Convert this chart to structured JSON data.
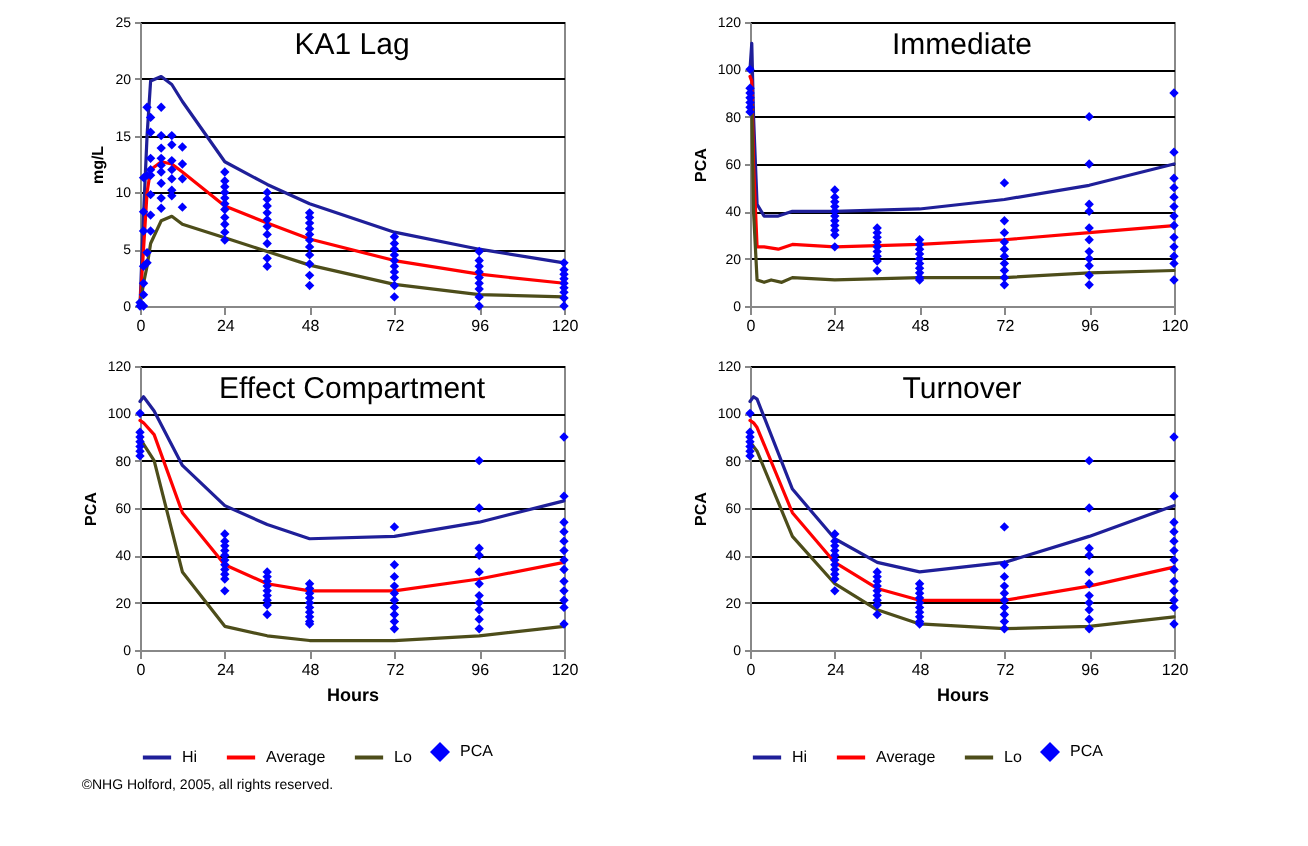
{
  "chart_data": [
    {
      "type": "line",
      "title": "KA1 Lag",
      "ylabel": "mg/L",
      "xlim": [
        0,
        120
      ],
      "ylim": [
        0,
        25
      ],
      "xticks": [
        0,
        24,
        48,
        72,
        96,
        120
      ],
      "yticks": [
        0,
        5,
        10,
        15,
        20,
        25
      ],
      "grid": "y",
      "legend": false,
      "series": [
        {
          "type": "line",
          "color": "#1f1f99",
          "x": [
            0,
            1,
            2,
            3,
            6,
            9,
            12,
            24,
            36,
            48,
            72,
            96,
            120
          ],
          "values": [
            0,
            8,
            15,
            19.8,
            20.2,
            19.5,
            18,
            12.7,
            10.7,
            9,
            6.5,
            5,
            3.8
          ]
        },
        {
          "type": "line",
          "color": "#ff0000",
          "x": [
            0,
            1,
            2,
            3,
            6,
            9,
            12,
            24,
            36,
            48,
            72,
            96,
            120
          ],
          "values": [
            0,
            5,
            10,
            12,
            12.7,
            12.5,
            11.8,
            8.8,
            7.3,
            5.9,
            4,
            2.8,
            2
          ]
        },
        {
          "type": "line",
          "color": "#4d4d1a",
          "x": [
            0,
            1,
            2,
            3,
            6,
            9,
            12,
            24,
            36,
            48,
            72,
            96,
            120
          ],
          "values": [
            0,
            2,
            3.5,
            5.5,
            7.5,
            7.9,
            7.2,
            6,
            4.8,
            3.6,
            1.9,
            1,
            0.8
          ]
        },
        {
          "type": "scatter",
          "color": "#0000ff",
          "marker": "diamond",
          "x": [
            0,
            0,
            1,
            1,
            1,
            1,
            1,
            1,
            1,
            2,
            2,
            2,
            2,
            3,
            3,
            3,
            3,
            3,
            3,
            3,
            3,
            6,
            6,
            6,
            6,
            6,
            6,
            6,
            6,
            6,
            9,
            9,
            9,
            9,
            9,
            9,
            9,
            12,
            12,
            12,
            12,
            24,
            24,
            24,
            24,
            24,
            24,
            24,
            24,
            24,
            24,
            24,
            36,
            36,
            36,
            36,
            36,
            36,
            36,
            36,
            36,
            36,
            48,
            48,
            48,
            48,
            48,
            48,
            48,
            48,
            48,
            48,
            48,
            72,
            72,
            72,
            72,
            72,
            72,
            72,
            72,
            72,
            72,
            96,
            96,
            96,
            96,
            96,
            96,
            96,
            96,
            96,
            120,
            120,
            120,
            120,
            120,
            120,
            120,
            120,
            120
          ],
          "values": [
            0,
            0.3,
            0,
            1,
            2,
            3.5,
            6.6,
            8.3,
            11.3,
            3.8,
            4.7,
            11.5,
            17.5,
            6.6,
            8,
            9.8,
            11.5,
            12,
            13,
            15.3,
            16.6,
            8.6,
            9.5,
            10.8,
            11.8,
            12.4,
            13,
            13.9,
            15,
            17.5,
            9.7,
            10.2,
            11.2,
            12,
            12.8,
            14.2,
            15,
            8.7,
            11.2,
            12.5,
            14,
            5.8,
            6.5,
            7.2,
            7.8,
            8.5,
            9,
            9.5,
            10,
            10.5,
            11,
            11.8,
            3.5,
            4.2,
            5.5,
            6.3,
            7,
            7.6,
            8.2,
            8.8,
            9.4,
            10,
            1.8,
            2.7,
            3.7,
            4.5,
            5.2,
            5.8,
            6.3,
            6.8,
            7.3,
            7.8,
            8.2,
            0.8,
            1.8,
            2.5,
            3,
            3.5,
            4,
            4.5,
            5,
            5.5,
            6.1,
            0,
            0.8,
            1.5,
            2,
            2.5,
            3,
            3.5,
            4,
            4.8,
            0,
            0.7,
            1.2,
            1.6,
            2,
            2.4,
            2.8,
            3.2,
            3.8
          ]
        }
      ]
    },
    {
      "type": "line",
      "title": "Immediate",
      "ylabel": "PCA",
      "xlim": [
        0,
        120
      ],
      "ylim": [
        0,
        120
      ],
      "xticks": [
        0,
        24,
        48,
        72,
        96,
        120
      ],
      "yticks": [
        0,
        20,
        40,
        60,
        80,
        100,
        120
      ],
      "grid": "y",
      "legend": false,
      "series": [
        {
          "type": "line",
          "color": "#1f1f99",
          "x": [
            0,
            0.5,
            1,
            2,
            4,
            8,
            12,
            24,
            48,
            72,
            96,
            120
          ],
          "values": [
            100,
            111,
            80,
            43,
            38,
            38,
            40,
            40,
            41,
            45,
            51,
            60
          ]
        },
        {
          "type": "line",
          "color": "#ff0000",
          "x": [
            0,
            0.5,
            1,
            2,
            4,
            8,
            12,
            24,
            48,
            72,
            96,
            120
          ],
          "values": [
            97,
            95,
            60,
            25,
            25,
            24,
            26,
            25,
            26,
            28,
            31,
            34
          ]
        },
        {
          "type": "line",
          "color": "#4d4d1a",
          "x": [
            0,
            0.5,
            1,
            2,
            4,
            6,
            9,
            12,
            24,
            48,
            72,
            96,
            120
          ],
          "values": [
            90,
            85,
            40,
            11,
            10,
            11,
            10,
            12,
            11,
            12,
            12,
            14,
            15
          ]
        },
        {
          "type": "scatter",
          "color": "#0000ff",
          "marker": "diamond",
          "x": [
            0,
            0,
            0,
            0,
            0,
            0,
            0,
            24,
            24,
            24,
            24,
            24,
            24,
            24,
            24,
            24,
            24,
            24,
            36,
            36,
            36,
            36,
            36,
            36,
            36,
            36,
            36,
            48,
            48,
            48,
            48,
            48,
            48,
            48,
            48,
            48,
            48,
            72,
            72,
            72,
            72,
            72,
            72,
            72,
            72,
            72,
            72,
            96,
            96,
            96,
            96,
            96,
            96,
            96,
            96,
            96,
            96,
            96,
            120,
            120,
            120,
            120,
            120,
            120,
            120,
            120,
            120,
            120,
            120,
            120,
            120
          ],
          "values": [
            100,
            92,
            90,
            88,
            86,
            84,
            82,
            49,
            46,
            44,
            42,
            40,
            38,
            36,
            34,
            32,
            30,
            25,
            33,
            31,
            29,
            27,
            25,
            23,
            21,
            19,
            15,
            28,
            26,
            24,
            22,
            20,
            18,
            16,
            14,
            12,
            11,
            52,
            36,
            31,
            27,
            24,
            21,
            18,
            15,
            12,
            9,
            80,
            60,
            43,
            40,
            33,
            28,
            23,
            20,
            17,
            13,
            9,
            90,
            65,
            54,
            50,
            46,
            42,
            38,
            34,
            29,
            25,
            21,
            18,
            11
          ]
        }
      ]
    },
    {
      "type": "line",
      "title": "Effect Compartment",
      "xlabel": "Hours",
      "ylabel": "PCA",
      "xlim": [
        0,
        120
      ],
      "ylim": [
        0,
        120
      ],
      "xticks": [
        0,
        24,
        48,
        72,
        96,
        120
      ],
      "yticks": [
        0,
        20,
        40,
        60,
        80,
        100,
        120
      ],
      "grid": "y",
      "legend": "bottom",
      "series": [
        {
          "name": "Hi",
          "type": "line",
          "color": "#1f1f99",
          "x": [
            0,
            1,
            4,
            12,
            24,
            36,
            48,
            72,
            96,
            120
          ],
          "values": [
            105,
            107,
            101,
            78,
            61,
            53,
            47,
            48,
            54,
            63
          ]
        },
        {
          "name": "Average",
          "type": "line",
          "color": "#ff0000",
          "x": [
            0,
            1,
            4,
            12,
            24,
            36,
            48,
            72,
            96,
            120
          ],
          "values": [
            97,
            96,
            91,
            58,
            36,
            28,
            25,
            25,
            30,
            37
          ]
        },
        {
          "name": "Lo",
          "type": "line",
          "color": "#4d4d1a",
          "x": [
            0,
            1,
            4,
            12,
            24,
            36,
            48,
            72,
            96,
            120
          ],
          "values": [
            90,
            87,
            80,
            33,
            10,
            6,
            4,
            4,
            6,
            10
          ]
        },
        {
          "name": "PCA",
          "type": "scatter",
          "color": "#0000ff",
          "marker": "diamond",
          "x": [
            0,
            0,
            0,
            0,
            0,
            0,
            0,
            24,
            24,
            24,
            24,
            24,
            24,
            24,
            24,
            24,
            24,
            24,
            36,
            36,
            36,
            36,
            36,
            36,
            36,
            36,
            36,
            48,
            48,
            48,
            48,
            48,
            48,
            48,
            48,
            48,
            48,
            72,
            72,
            72,
            72,
            72,
            72,
            72,
            72,
            72,
            72,
            96,
            96,
            96,
            96,
            96,
            96,
            96,
            96,
            96,
            96,
            96,
            120,
            120,
            120,
            120,
            120,
            120,
            120,
            120,
            120,
            120,
            120,
            120,
            120
          ],
          "values": [
            100,
            92,
            90,
            88,
            86,
            84,
            82,
            49,
            46,
            44,
            42,
            40,
            38,
            36,
            34,
            32,
            30,
            25,
            33,
            31,
            29,
            27,
            25,
            23,
            21,
            19,
            15,
            28,
            26,
            24,
            22,
            20,
            18,
            16,
            14,
            12,
            11,
            52,
            36,
            31,
            27,
            24,
            21,
            18,
            15,
            12,
            9,
            80,
            60,
            43,
            40,
            33,
            28,
            23,
            20,
            17,
            13,
            9,
            90,
            65,
            54,
            50,
            46,
            42,
            38,
            34,
            29,
            25,
            21,
            18,
            11
          ]
        }
      ],
      "annotations": [
        "©NHG Holford, 2005, all rights reserved."
      ]
    },
    {
      "type": "line",
      "title": "Turnover",
      "xlabel": "Hours",
      "ylabel": "PCA",
      "xlim": [
        0,
        120
      ],
      "ylim": [
        0,
        120
      ],
      "xticks": [
        0,
        24,
        48,
        72,
        96,
        120
      ],
      "yticks": [
        0,
        20,
        40,
        60,
        80,
        100,
        120
      ],
      "grid": "y",
      "legend": "bottom",
      "series": [
        {
          "name": "Hi",
          "type": "line",
          "color": "#1f1f99",
          "x": [
            0,
            1,
            2,
            12,
            24,
            36,
            48,
            72,
            96,
            120
          ],
          "values": [
            105,
            107,
            106,
            68,
            47,
            37,
            33,
            37,
            48,
            61
          ]
        },
        {
          "name": "Average",
          "type": "line",
          "color": "#ff0000",
          "x": [
            0,
            1,
            2,
            12,
            24,
            36,
            48,
            72,
            96,
            120
          ],
          "values": [
            97,
            96,
            94,
            58,
            37,
            26,
            21,
            21,
            27,
            35
          ]
        },
        {
          "name": "Lo",
          "type": "line",
          "color": "#4d4d1a",
          "x": [
            0,
            1,
            2,
            12,
            24,
            36,
            48,
            72,
            96,
            120
          ],
          "values": [
            88,
            86,
            84,
            48,
            28,
            17,
            11,
            9,
            10,
            14
          ]
        },
        {
          "name": "PCA",
          "type": "scatter",
          "color": "#0000ff",
          "marker": "diamond",
          "x": [
            0,
            0,
            0,
            0,
            0,
            0,
            0,
            24,
            24,
            24,
            24,
            24,
            24,
            24,
            24,
            24,
            24,
            24,
            36,
            36,
            36,
            36,
            36,
            36,
            36,
            36,
            36,
            48,
            48,
            48,
            48,
            48,
            48,
            48,
            48,
            48,
            48,
            72,
            72,
            72,
            72,
            72,
            72,
            72,
            72,
            72,
            72,
            96,
            96,
            96,
            96,
            96,
            96,
            96,
            96,
            96,
            96,
            96,
            120,
            120,
            120,
            120,
            120,
            120,
            120,
            120,
            120,
            120,
            120,
            120,
            120
          ],
          "values": [
            100,
            92,
            90,
            88,
            86,
            84,
            82,
            49,
            46,
            44,
            42,
            40,
            38,
            36,
            34,
            32,
            30,
            25,
            33,
            31,
            29,
            27,
            25,
            23,
            21,
            19,
            15,
            28,
            26,
            24,
            22,
            20,
            18,
            16,
            14,
            12,
            11,
            52,
            36,
            31,
            27,
            24,
            21,
            18,
            15,
            12,
            9,
            80,
            60,
            43,
            40,
            33,
            28,
            23,
            20,
            17,
            13,
            9,
            90,
            65,
            54,
            50,
            46,
            42,
            38,
            34,
            29,
            25,
            21,
            18,
            11
          ]
        }
      ]
    }
  ]
}
